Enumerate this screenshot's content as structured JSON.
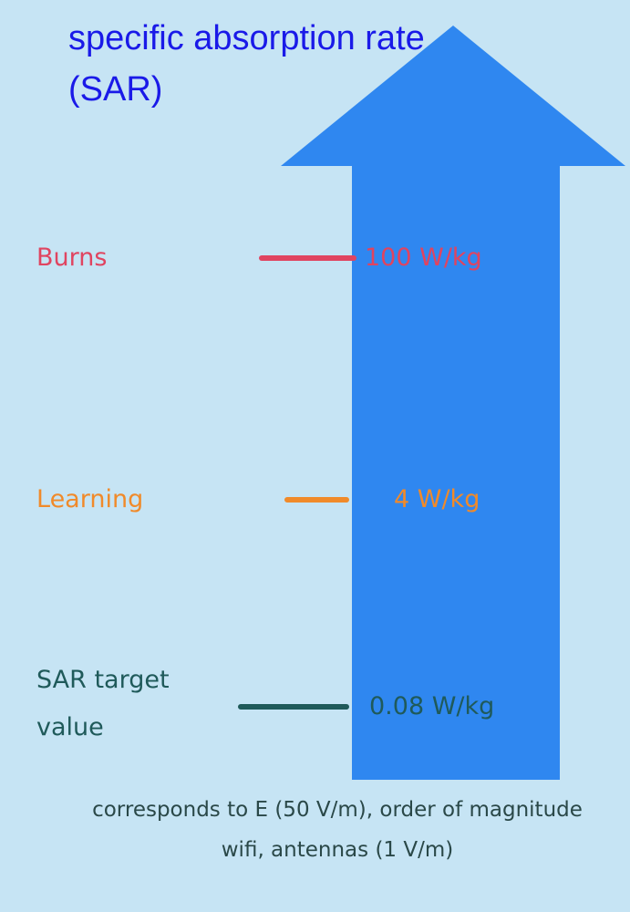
{
  "title": "specific absorption rate (SAR)",
  "levels": [
    {
      "label": "Burns",
      "value": "100 W/kg"
    },
    {
      "label": "Learning",
      "value": "4 W/kg"
    },
    {
      "label": "SAR target value",
      "value": "0.08 W/kg"
    }
  ],
  "footer": "corresponds to E (50 V/m), order of magnitude wifi, antennas (1 V/m)"
}
